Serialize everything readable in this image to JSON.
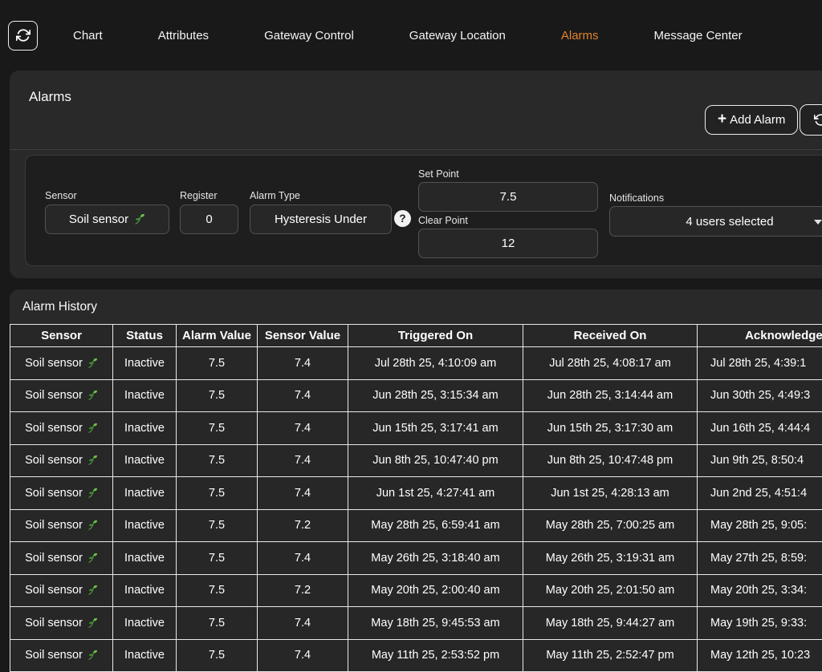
{
  "colors": {
    "accent": "#e0832f",
    "seedling_green": "#6cc24a",
    "table_border": "#e9e9e9"
  },
  "nav": {
    "refresh_button_icon": "refresh-icon",
    "items": [
      {
        "label": "Chart",
        "active": false
      },
      {
        "label": "Attributes",
        "active": false
      },
      {
        "label": "Gateway Control",
        "active": false
      },
      {
        "label": "Gateway Location",
        "active": false
      },
      {
        "label": "Alarms",
        "active": true
      },
      {
        "label": "Message Center",
        "active": false
      }
    ]
  },
  "alarms_panel": {
    "title": "Alarms",
    "add_alarm": {
      "plus": "+",
      "label": "Add Alarm"
    },
    "reload_button_icon": "rotate-ccw-icon",
    "form": {
      "sensor": {
        "label": "Sensor",
        "value": "Soil sensor",
        "icon": "seedling-icon"
      },
      "register": {
        "label": "Register",
        "value": "0"
      },
      "alarm_type": {
        "label": "Alarm Type",
        "value": "Hysteresis Under"
      },
      "help_badge": "?",
      "set_point": {
        "label": "Set Point",
        "value": "7.5"
      },
      "clear_point": {
        "label": "Clear Point",
        "value": "12"
      },
      "notifications": {
        "label": "Notifications",
        "value": "4 users selected"
      }
    }
  },
  "history": {
    "title": "Alarm History",
    "columns": [
      "Sensor",
      "Status",
      "Alarm Value",
      "Sensor Value",
      "Triggered On",
      "Received On",
      "Acknowledged"
    ],
    "rows": [
      {
        "sensor": "Soil sensor",
        "status": "Inactive",
        "alarm_value": "7.5",
        "sensor_value": "7.4",
        "triggered": "Jul 28th 25, 4:10:09 am",
        "received": "Jul 28th 25, 4:08:17 am",
        "acknowledged": "Jul 28th 25, 4:39:1"
      },
      {
        "sensor": "Soil sensor",
        "status": "Inactive",
        "alarm_value": "7.5",
        "sensor_value": "7.4",
        "triggered": "Jun 28th 25, 3:15:34 am",
        "received": "Jun 28th 25, 3:14:44 am",
        "acknowledged": "Jun 30th 25, 4:49:3"
      },
      {
        "sensor": "Soil sensor",
        "status": "Inactive",
        "alarm_value": "7.5",
        "sensor_value": "7.4",
        "triggered": "Jun 15th 25, 3:17:41 am",
        "received": "Jun 15th 25, 3:17:30 am",
        "acknowledged": "Jun 16th 25, 4:44:4"
      },
      {
        "sensor": "Soil sensor",
        "status": "Inactive",
        "alarm_value": "7.5",
        "sensor_value": "7.4",
        "triggered": "Jun 8th 25, 10:47:40 pm",
        "received": "Jun 8th 25, 10:47:48 pm",
        "acknowledged": "Jun 9th 25, 8:50:4"
      },
      {
        "sensor": "Soil sensor",
        "status": "Inactive",
        "alarm_value": "7.5",
        "sensor_value": "7.4",
        "triggered": "Jun 1st 25, 4:27:41 am",
        "received": "Jun 1st 25, 4:28:13 am",
        "acknowledged": "Jun 2nd 25, 4:51:4"
      },
      {
        "sensor": "Soil sensor",
        "status": "Inactive",
        "alarm_value": "7.5",
        "sensor_value": "7.2",
        "triggered": "May 28th 25, 6:59:41 am",
        "received": "May 28th 25, 7:00:25 am",
        "acknowledged": "May 28th 25, 9:05:"
      },
      {
        "sensor": "Soil sensor",
        "status": "Inactive",
        "alarm_value": "7.5",
        "sensor_value": "7.4",
        "triggered": "May 26th 25, 3:18:40 am",
        "received": "May 26th 25, 3:19:31 am",
        "acknowledged": "May 27th 25, 8:59:"
      },
      {
        "sensor": "Soil sensor",
        "status": "Inactive",
        "alarm_value": "7.5",
        "sensor_value": "7.2",
        "triggered": "May 20th 25, 2:00:40 am",
        "received": "May 20th 25, 2:01:50 am",
        "acknowledged": "May 20th 25, 3:34:"
      },
      {
        "sensor": "Soil sensor",
        "status": "Inactive",
        "alarm_value": "7.5",
        "sensor_value": "7.4",
        "triggered": "May 18th 25, 9:45:53 am",
        "received": "May 18th 25, 9:44:27 am",
        "acknowledged": "May 19th 25, 9:33:"
      },
      {
        "sensor": "Soil sensor",
        "status": "Inactive",
        "alarm_value": "7.5",
        "sensor_value": "7.4",
        "triggered": "May 11th 25, 2:53:52 pm",
        "received": "May 11th 25, 2:52:47 pm",
        "acknowledged": "May 12th 25, 10:23"
      }
    ]
  }
}
